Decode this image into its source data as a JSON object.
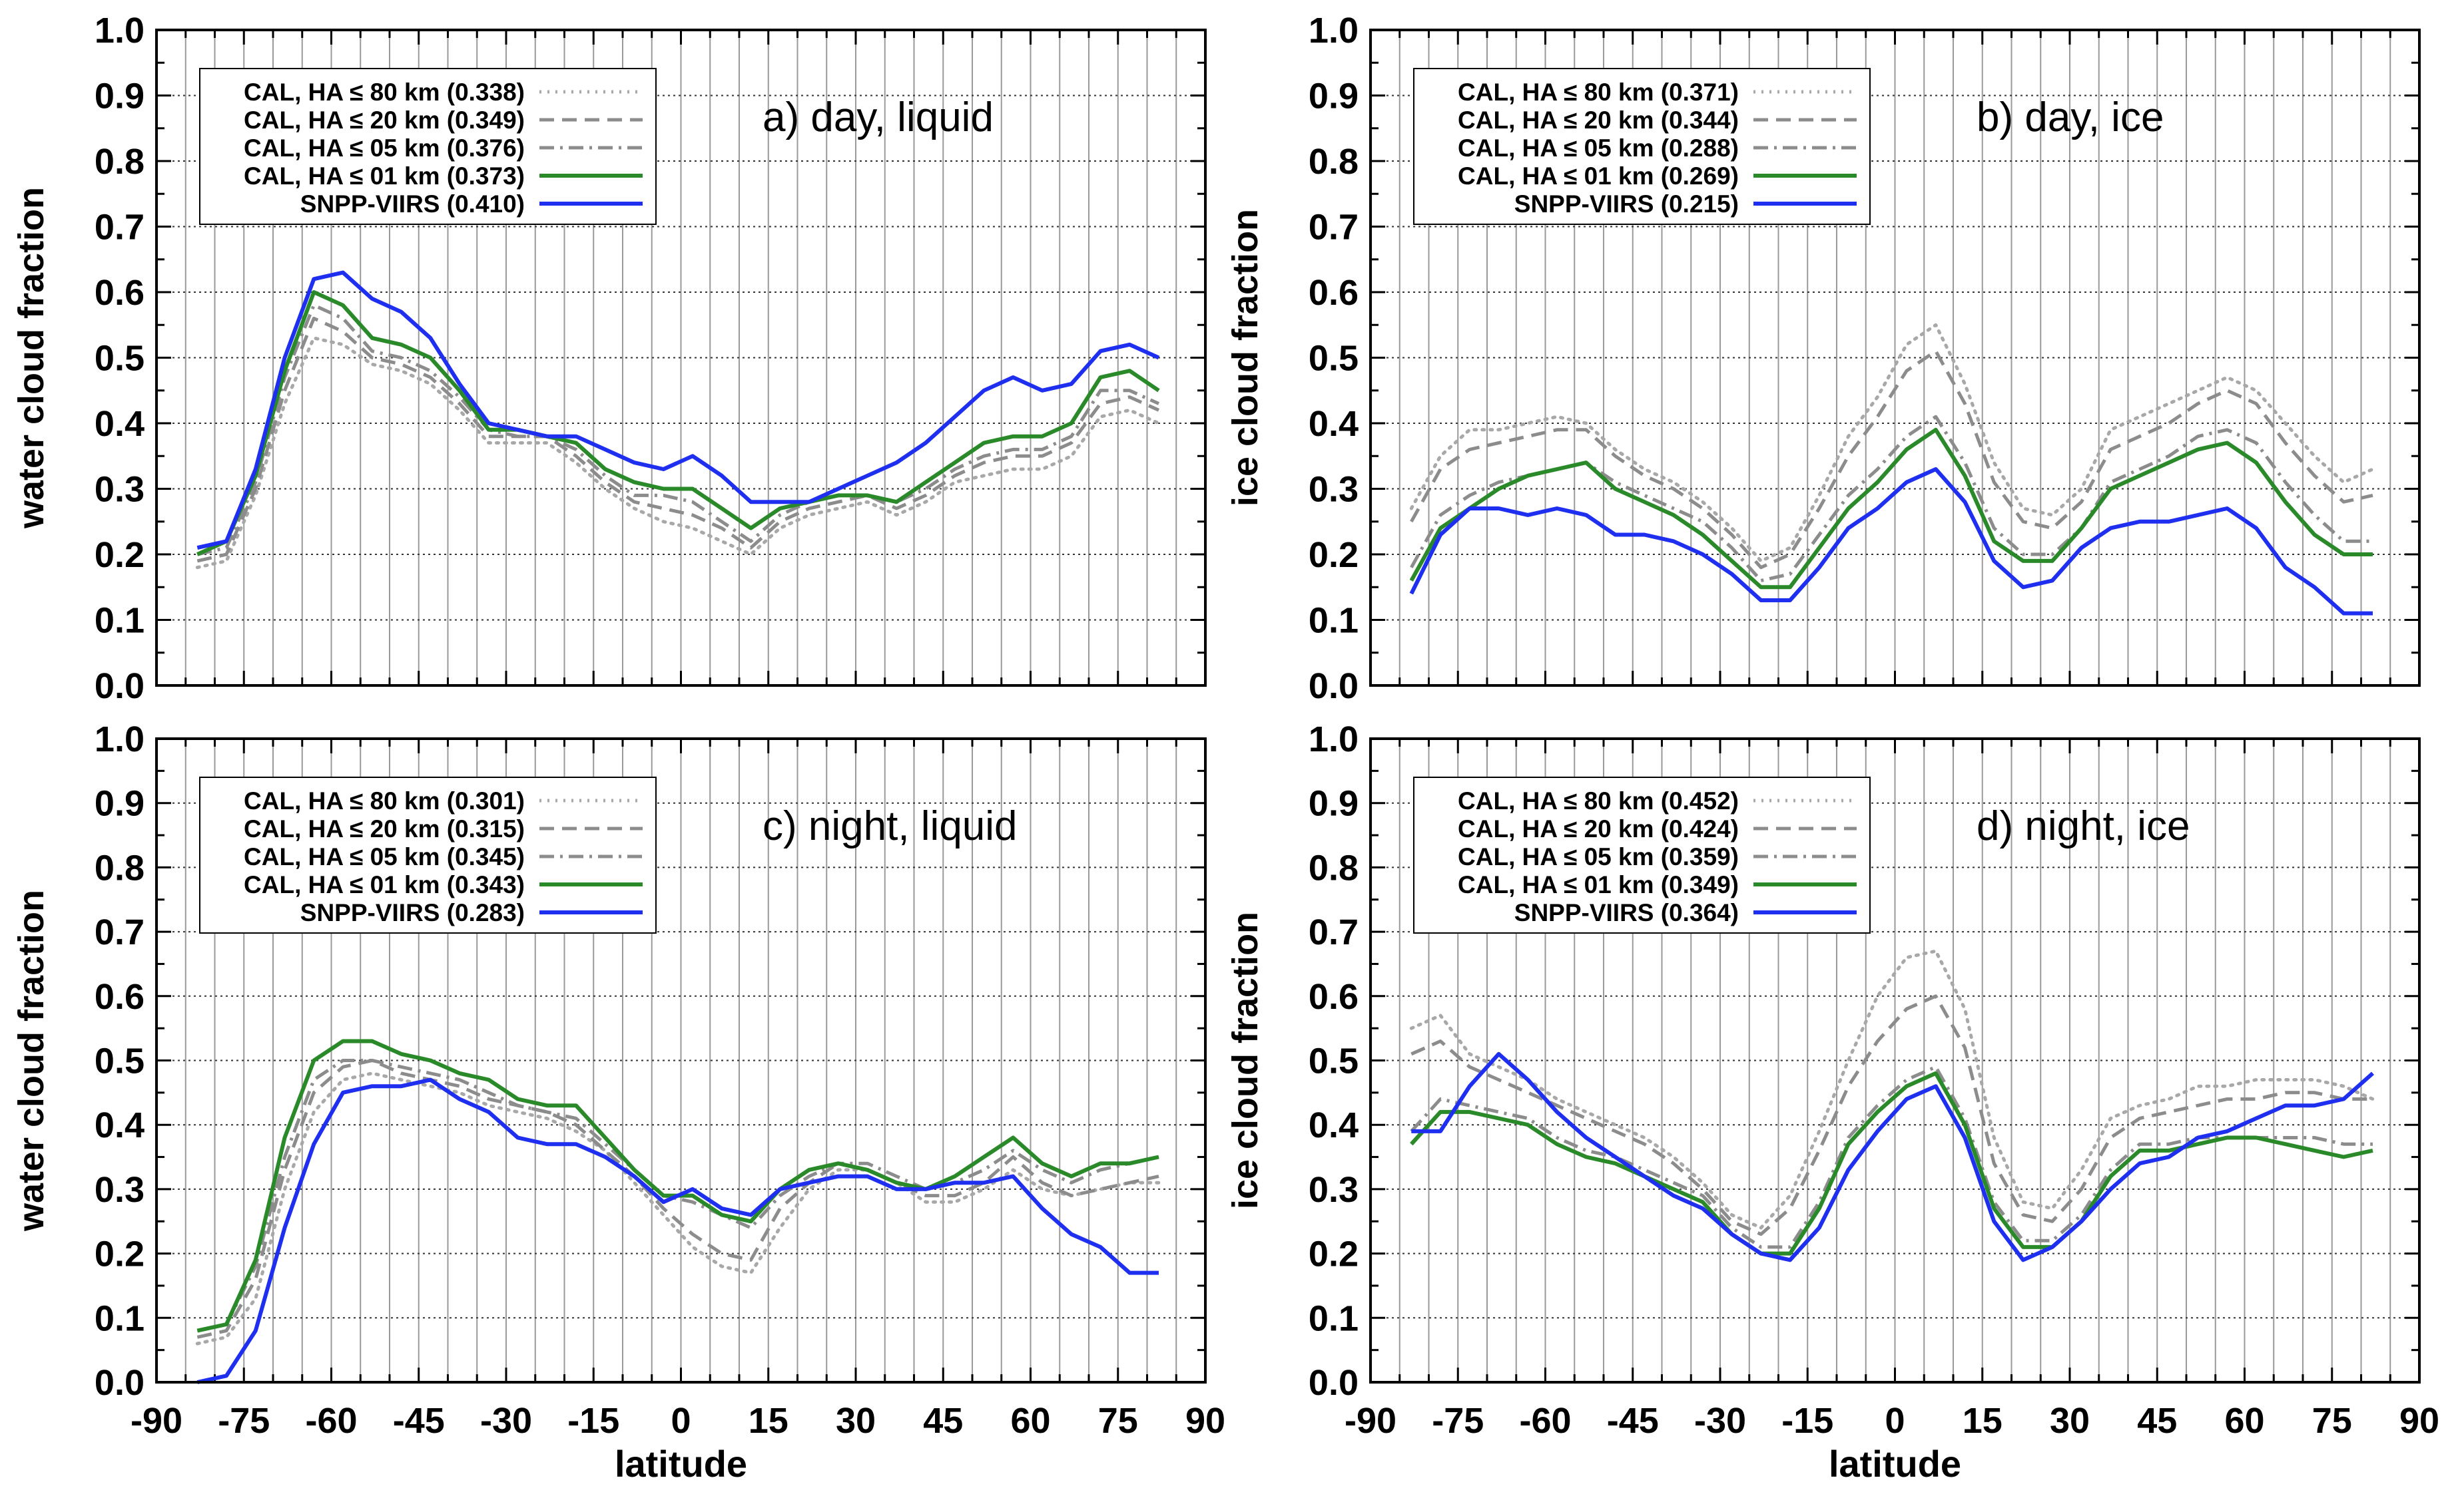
{
  "figure": {
    "xlabel": "latitude"
  },
  "chart_data": [
    {
      "type": "line",
      "title": "a) day, liquid",
      "xlabel": "",
      "ylabel": "water cloud fraction",
      "xlim": [
        -90,
        90
      ],
      "ylim": [
        0,
        1
      ],
      "xticks": [
        "-90",
        "-75",
        "-60",
        "-45",
        "-30",
        "-15",
        "0",
        "15",
        "30",
        "45",
        "60",
        "75",
        "90"
      ],
      "yticks": [
        "0.0",
        "0.1",
        "0.2",
        "0.3",
        "0.4",
        "0.5",
        "0.6",
        "0.7",
        "0.8",
        "0.9",
        "1.0"
      ],
      "grid": true,
      "legend_position": "top-left",
      "x": [
        -83,
        -78,
        -73,
        -68,
        -63,
        -58,
        -53,
        -48,
        -43,
        -38,
        -33,
        -28,
        -23,
        -18,
        -13,
        -8,
        -3,
        2,
        7,
        12,
        17,
        22,
        27,
        32,
        37,
        42,
        47,
        52,
        57,
        62,
        67,
        72,
        77,
        82
      ],
      "series": [
        {
          "name": "CAL, HA ≤ 80 km (0.338)",
          "style": "dotted",
          "color": "#a8a8a8",
          "values": [
            0.18,
            0.19,
            0.29,
            0.43,
            0.53,
            0.52,
            0.49,
            0.48,
            0.46,
            0.42,
            0.37,
            0.37,
            0.37,
            0.34,
            0.3,
            0.27,
            0.25,
            0.24,
            0.22,
            0.2,
            0.24,
            0.26,
            0.27,
            0.28,
            0.26,
            0.28,
            0.31,
            0.32,
            0.33,
            0.33,
            0.35,
            0.41,
            0.42,
            0.4
          ]
        },
        {
          "name": "CAL, HA ≤ 20 km (0.349)",
          "style": "dashed",
          "color": "#8c8c8c",
          "values": [
            0.19,
            0.2,
            0.3,
            0.45,
            0.56,
            0.54,
            0.5,
            0.49,
            0.47,
            0.43,
            0.38,
            0.38,
            0.38,
            0.35,
            0.31,
            0.28,
            0.27,
            0.26,
            0.24,
            0.21,
            0.25,
            0.27,
            0.28,
            0.29,
            0.27,
            0.29,
            0.32,
            0.34,
            0.35,
            0.35,
            0.37,
            0.43,
            0.44,
            0.42
          ]
        },
        {
          "name": "CAL, HA ≤ 05 km (0.376)",
          "style": "dashdot",
          "color": "#8c8c8c",
          "values": [
            0.2,
            0.21,
            0.31,
            0.47,
            0.58,
            0.56,
            0.51,
            0.5,
            0.48,
            0.44,
            0.39,
            0.38,
            0.38,
            0.36,
            0.32,
            0.29,
            0.29,
            0.28,
            0.25,
            0.22,
            0.26,
            0.28,
            0.29,
            0.29,
            0.28,
            0.3,
            0.33,
            0.35,
            0.36,
            0.36,
            0.38,
            0.45,
            0.45,
            0.43
          ]
        },
        {
          "name": "CAL, HA ≤ 01 km (0.373)",
          "style": "solid",
          "color": "#2a8a2a",
          "values": [
            0.2,
            0.22,
            0.32,
            0.48,
            0.6,
            0.58,
            0.53,
            0.52,
            0.5,
            0.45,
            0.39,
            0.39,
            0.38,
            0.37,
            0.33,
            0.31,
            0.3,
            0.3,
            0.27,
            0.24,
            0.27,
            0.28,
            0.29,
            0.29,
            0.28,
            0.31,
            0.34,
            0.37,
            0.38,
            0.38,
            0.4,
            0.47,
            0.48,
            0.45
          ]
        },
        {
          "name": "SNPP-VIIRS (0.410)",
          "style": "solid",
          "color": "#1f2ff0",
          "values": [
            0.21,
            0.22,
            0.33,
            0.5,
            0.62,
            0.63,
            0.59,
            0.57,
            0.53,
            0.46,
            0.4,
            0.39,
            0.38,
            0.38,
            0.36,
            0.34,
            0.33,
            0.35,
            0.32,
            0.28,
            0.28,
            0.28,
            0.3,
            0.32,
            0.34,
            0.37,
            0.41,
            0.45,
            0.47,
            0.45,
            0.46,
            0.51,
            0.52,
            0.5
          ]
        }
      ]
    },
    {
      "type": "line",
      "title": "b) day, ice",
      "xlabel": "",
      "ylabel": "ice cloud fraction",
      "xlim": [
        -90,
        90
      ],
      "ylim": [
        0,
        1
      ],
      "xticks": [
        "-90",
        "-75",
        "-60",
        "-45",
        "-30",
        "-15",
        "0",
        "15",
        "30",
        "45",
        "60",
        "75",
        "90"
      ],
      "yticks": [
        "0.0",
        "0.1",
        "0.2",
        "0.3",
        "0.4",
        "0.5",
        "0.6",
        "0.7",
        "0.8",
        "0.9",
        "1.0"
      ],
      "grid": true,
      "legend_position": "top-left",
      "x": [
        -83,
        -78,
        -73,
        -68,
        -63,
        -58,
        -53,
        -48,
        -43,
        -38,
        -33,
        -28,
        -23,
        -18,
        -13,
        -8,
        -3,
        2,
        7,
        12,
        17,
        22,
        27,
        32,
        37,
        42,
        47,
        52,
        57,
        62,
        67,
        72,
        77,
        82
      ],
      "series": [
        {
          "name": "CAL, HA ≤ 80 km (0.371)",
          "style": "dotted",
          "color": "#a8a8a8",
          "values": [
            0.27,
            0.35,
            0.39,
            0.39,
            0.4,
            0.41,
            0.4,
            0.36,
            0.33,
            0.31,
            0.28,
            0.24,
            0.19,
            0.21,
            0.29,
            0.38,
            0.44,
            0.52,
            0.55,
            0.46,
            0.34,
            0.27,
            0.26,
            0.3,
            0.39,
            0.41,
            0.43,
            0.45,
            0.47,
            0.45,
            0.4,
            0.35,
            0.31,
            0.33
          ]
        },
        {
          "name": "CAL, HA ≤ 20 km (0.344)",
          "style": "dashed",
          "color": "#8c8c8c",
          "values": [
            0.25,
            0.33,
            0.36,
            0.37,
            0.38,
            0.39,
            0.39,
            0.35,
            0.32,
            0.3,
            0.27,
            0.23,
            0.18,
            0.2,
            0.27,
            0.35,
            0.41,
            0.48,
            0.51,
            0.43,
            0.31,
            0.25,
            0.24,
            0.28,
            0.36,
            0.38,
            0.4,
            0.43,
            0.45,
            0.43,
            0.37,
            0.32,
            0.28,
            0.29
          ]
        },
        {
          "name": "CAL, HA ≤ 05 km (0.288)",
          "style": "dashdot",
          "color": "#8c8c8c",
          "values": [
            0.18,
            0.26,
            0.29,
            0.31,
            0.32,
            0.33,
            0.34,
            0.31,
            0.29,
            0.27,
            0.25,
            0.21,
            0.16,
            0.17,
            0.23,
            0.29,
            0.33,
            0.38,
            0.41,
            0.34,
            0.24,
            0.2,
            0.2,
            0.24,
            0.31,
            0.33,
            0.35,
            0.38,
            0.39,
            0.37,
            0.31,
            0.26,
            0.22,
            0.22
          ]
        },
        {
          "name": "CAL, HA ≤ 01 km (0.269)",
          "style": "solid",
          "color": "#2a8a2a",
          "values": [
            0.16,
            0.24,
            0.27,
            0.3,
            0.32,
            0.33,
            0.34,
            0.3,
            0.28,
            0.26,
            0.23,
            0.19,
            0.15,
            0.15,
            0.21,
            0.27,
            0.31,
            0.36,
            0.39,
            0.32,
            0.22,
            0.19,
            0.19,
            0.24,
            0.3,
            0.32,
            0.34,
            0.36,
            0.37,
            0.34,
            0.28,
            0.23,
            0.2,
            0.2
          ]
        },
        {
          "name": "SNPP-VIIRS (0.215)",
          "style": "solid",
          "color": "#1f2ff0",
          "values": [
            0.14,
            0.23,
            0.27,
            0.27,
            0.26,
            0.27,
            0.26,
            0.23,
            0.23,
            0.22,
            0.2,
            0.17,
            0.13,
            0.13,
            0.18,
            0.24,
            0.27,
            0.31,
            0.33,
            0.28,
            0.19,
            0.15,
            0.16,
            0.21,
            0.24,
            0.25,
            0.25,
            0.26,
            0.27,
            0.24,
            0.18,
            0.15,
            0.11,
            0.11
          ]
        }
      ]
    },
    {
      "type": "line",
      "title": "c) night, liquid",
      "xlabel": "latitude",
      "ylabel": "water cloud fraction",
      "xlim": [
        -90,
        90
      ],
      "ylim": [
        0,
        1
      ],
      "xticks": [
        "-90",
        "-75",
        "-60",
        "-45",
        "-30",
        "-15",
        "0",
        "15",
        "30",
        "45",
        "60",
        "75",
        "90"
      ],
      "yticks": [
        "0.0",
        "0.1",
        "0.2",
        "0.3",
        "0.4",
        "0.5",
        "0.6",
        "0.7",
        "0.8",
        "0.9",
        "1.0"
      ],
      "grid": true,
      "legend_position": "top-left",
      "x": [
        -83,
        -78,
        -73,
        -68,
        -63,
        -58,
        -53,
        -48,
        -43,
        -38,
        -33,
        -28,
        -23,
        -18,
        -13,
        -8,
        -3,
        2,
        7,
        12,
        17,
        22,
        27,
        32,
        37,
        42,
        47,
        52,
        57,
        62,
        67,
        72,
        77,
        82
      ],
      "series": [
        {
          "name": "CAL, HA ≤ 80 km (0.301)",
          "style": "dotted",
          "color": "#a8a8a8",
          "values": [
            0.06,
            0.07,
            0.13,
            0.3,
            0.42,
            0.47,
            0.48,
            0.47,
            0.46,
            0.45,
            0.43,
            0.42,
            0.41,
            0.39,
            0.36,
            0.31,
            0.26,
            0.21,
            0.18,
            0.17,
            0.24,
            0.3,
            0.33,
            0.33,
            0.31,
            0.28,
            0.28,
            0.3,
            0.33,
            0.3,
            0.29,
            0.3,
            0.31,
            0.31
          ]
        },
        {
          "name": "CAL, HA ≤ 20 km (0.315)",
          "style": "dashed",
          "color": "#8c8c8c",
          "values": [
            0.07,
            0.08,
            0.16,
            0.33,
            0.45,
            0.49,
            0.5,
            0.48,
            0.47,
            0.46,
            0.44,
            0.43,
            0.42,
            0.4,
            0.36,
            0.32,
            0.27,
            0.23,
            0.2,
            0.19,
            0.27,
            0.31,
            0.34,
            0.33,
            0.31,
            0.29,
            0.29,
            0.31,
            0.35,
            0.31,
            0.29,
            0.3,
            0.31,
            0.32
          ]
        },
        {
          "name": "CAL, HA ≤ 05 km (0.345)",
          "style": "dashdot",
          "color": "#8c8c8c",
          "values": [
            0.08,
            0.09,
            0.18,
            0.35,
            0.47,
            0.5,
            0.5,
            0.49,
            0.48,
            0.47,
            0.45,
            0.43,
            0.42,
            0.41,
            0.37,
            0.33,
            0.29,
            0.28,
            0.26,
            0.24,
            0.29,
            0.32,
            0.34,
            0.34,
            0.32,
            0.3,
            0.31,
            0.33,
            0.36,
            0.33,
            0.31,
            0.33,
            0.34,
            0.35
          ]
        },
        {
          "name": "CAL, HA ≤ 01 km (0.343)",
          "style": "solid",
          "color": "#2a8a2a",
          "values": [
            0.08,
            0.09,
            0.19,
            0.38,
            0.5,
            0.53,
            0.53,
            0.51,
            0.5,
            0.48,
            0.47,
            0.44,
            0.43,
            0.43,
            0.38,
            0.33,
            0.29,
            0.29,
            0.26,
            0.25,
            0.3,
            0.33,
            0.34,
            0.33,
            0.31,
            0.3,
            0.32,
            0.35,
            0.38,
            0.34,
            0.32,
            0.34,
            0.34,
            0.35
          ]
        },
        {
          "name": "SNPP-VIIRS (0.283)",
          "style": "solid",
          "color": "#1f2ff0",
          "values": [
            0.0,
            0.01,
            0.08,
            0.24,
            0.37,
            0.45,
            0.46,
            0.46,
            0.47,
            0.44,
            0.42,
            0.38,
            0.37,
            0.37,
            0.35,
            0.32,
            0.28,
            0.3,
            0.27,
            0.26,
            0.3,
            0.31,
            0.32,
            0.32,
            0.3,
            0.3,
            0.31,
            0.31,
            0.32,
            0.27,
            0.23,
            0.21,
            0.17,
            0.17
          ]
        }
      ]
    },
    {
      "type": "line",
      "title": "d) night, ice",
      "xlabel": "latitude",
      "ylabel": "ice cloud fraction",
      "xlim": [
        -90,
        90
      ],
      "ylim": [
        0,
        1
      ],
      "xticks": [
        "-90",
        "-75",
        "-60",
        "-45",
        "-30",
        "-15",
        "0",
        "15",
        "30",
        "45",
        "60",
        "75",
        "90"
      ],
      "yticks": [
        "0.0",
        "0.1",
        "0.2",
        "0.3",
        "0.4",
        "0.5",
        "0.6",
        "0.7",
        "0.8",
        "0.9",
        "1.0"
      ],
      "grid": true,
      "legend_position": "top-left",
      "x": [
        -83,
        -78,
        -73,
        -68,
        -63,
        -58,
        -53,
        -48,
        -43,
        -38,
        -33,
        -28,
        -23,
        -18,
        -13,
        -8,
        -3,
        2,
        7,
        12,
        17,
        22,
        27,
        32,
        37,
        42,
        47,
        52,
        57,
        62,
        67,
        72,
        77,
        82
      ],
      "series": [
        {
          "name": "CAL, HA ≤ 80 km (0.452)",
          "style": "dotted",
          "color": "#a8a8a8",
          "values": [
            0.55,
            0.57,
            0.51,
            0.49,
            0.47,
            0.44,
            0.42,
            0.4,
            0.38,
            0.35,
            0.31,
            0.26,
            0.24,
            0.29,
            0.39,
            0.5,
            0.6,
            0.66,
            0.67,
            0.58,
            0.38,
            0.28,
            0.27,
            0.33,
            0.41,
            0.43,
            0.44,
            0.46,
            0.46,
            0.47,
            0.47,
            0.47,
            0.46,
            0.44
          ]
        },
        {
          "name": "CAL, HA ≤ 20 km (0.424)",
          "style": "dashed",
          "color": "#8c8c8c",
          "values": [
            0.51,
            0.53,
            0.49,
            0.47,
            0.45,
            0.43,
            0.41,
            0.39,
            0.37,
            0.34,
            0.3,
            0.25,
            0.23,
            0.27,
            0.36,
            0.46,
            0.53,
            0.58,
            0.6,
            0.52,
            0.34,
            0.26,
            0.25,
            0.3,
            0.38,
            0.41,
            0.42,
            0.43,
            0.44,
            0.44,
            0.45,
            0.45,
            0.44,
            0.44
          ]
        },
        {
          "name": "CAL, HA ≤ 05 km (0.359)",
          "style": "dashdot",
          "color": "#8c8c8c",
          "values": [
            0.39,
            0.44,
            0.43,
            0.42,
            0.41,
            0.38,
            0.36,
            0.35,
            0.33,
            0.31,
            0.29,
            0.24,
            0.21,
            0.21,
            0.28,
            0.38,
            0.43,
            0.47,
            0.49,
            0.41,
            0.28,
            0.22,
            0.22,
            0.26,
            0.33,
            0.37,
            0.37,
            0.38,
            0.38,
            0.38,
            0.38,
            0.38,
            0.37,
            0.37
          ]
        },
        {
          "name": "CAL, HA ≤ 01 km (0.349)",
          "style": "solid",
          "color": "#2a8a2a",
          "values": [
            0.37,
            0.42,
            0.42,
            0.41,
            0.4,
            0.37,
            0.35,
            0.34,
            0.32,
            0.3,
            0.28,
            0.23,
            0.2,
            0.2,
            0.27,
            0.37,
            0.42,
            0.46,
            0.48,
            0.4,
            0.27,
            0.21,
            0.21,
            0.25,
            0.32,
            0.36,
            0.36,
            0.37,
            0.38,
            0.38,
            0.37,
            0.36,
            0.35,
            0.36
          ]
        },
        {
          "name": "SNPP-VIIRS (0.364)",
          "style": "solid",
          "color": "#1f2ff0",
          "values": [
            0.39,
            0.39,
            0.46,
            0.51,
            0.47,
            0.42,
            0.38,
            0.35,
            0.32,
            0.29,
            0.27,
            0.23,
            0.2,
            0.19,
            0.24,
            0.33,
            0.39,
            0.44,
            0.46,
            0.38,
            0.25,
            0.19,
            0.21,
            0.25,
            0.3,
            0.34,
            0.35,
            0.38,
            0.39,
            0.41,
            0.43,
            0.43,
            0.44,
            0.48
          ]
        }
      ]
    }
  ]
}
